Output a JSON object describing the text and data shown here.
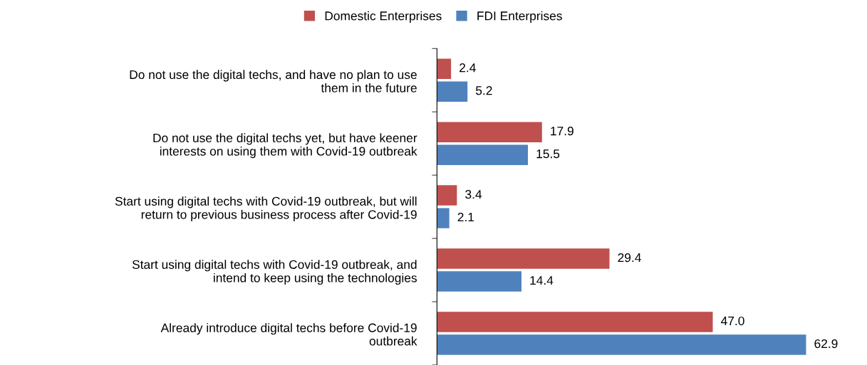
{
  "chart_data": {
    "type": "bar",
    "orientation": "horizontal",
    "categories": [
      "Do not use the digital techs, and have no plan to use\nthem in the future",
      "Do not use the digital techs yet, but have keener\ninterests on using them with Covid-19 outbreak",
      "Start using digital techs with Covid-19 outbreak, but will\nreturn to previous business process after Covid-19",
      "Start using digital techs with Covid-19 outbreak, and\nintend to keep using the technologies",
      "Already introduce digital techs before Covid-19\noutbreak"
    ],
    "series": [
      {
        "name": "Domestic Enterprises",
        "color": "#c0504d",
        "values": [
          2.4,
          17.9,
          3.4,
          29.4,
          47.0
        ],
        "value_labels": [
          "2.4",
          "17.9",
          "3.4",
          "29.4",
          "47.0"
        ]
      },
      {
        "name": "FDI Enterprises",
        "color": "#4f81bd",
        "values": [
          5.2,
          15.5,
          2.1,
          14.4,
          62.9
        ],
        "value_labels": [
          "5.2",
          "15.5",
          "2.1",
          "14.4",
          "62.9"
        ]
      }
    ],
    "tick_labels": "y",
    "grid": false,
    "legend": "top"
  }
}
